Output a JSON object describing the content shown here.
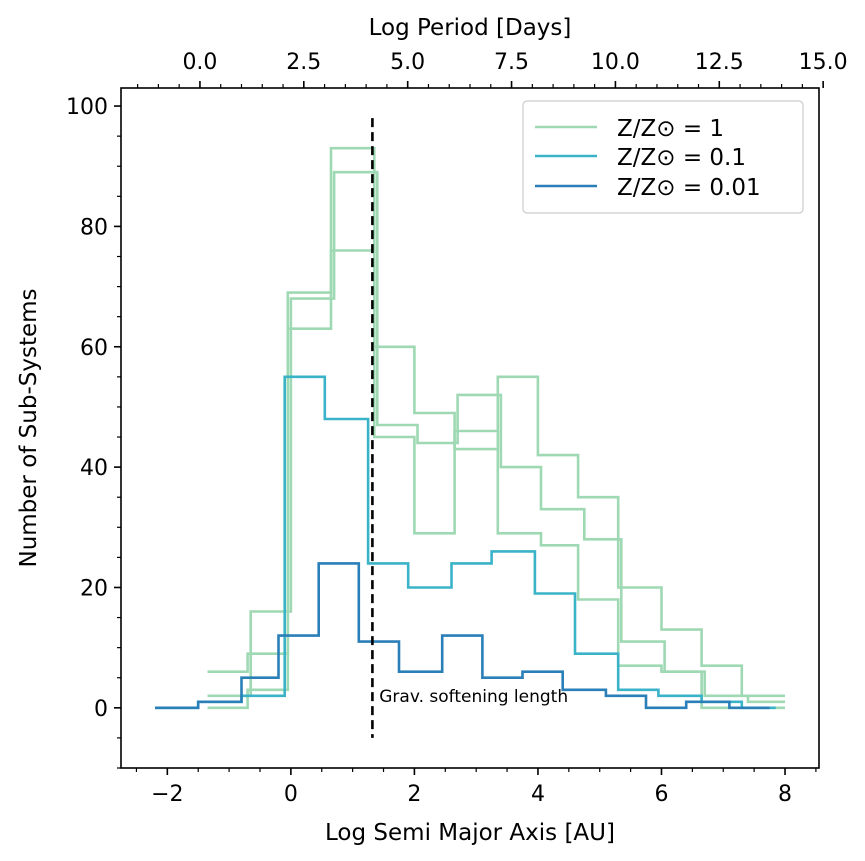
{
  "chart_data": {
    "type": "line",
    "drawstyle": "steps",
    "xlabel": "Log Semi Major Axis [AU]",
    "ylabel": "Number of Sub-Systems",
    "top_xlabel": "Log Period [Days]",
    "xlim": [
      -2.75,
      8.55
    ],
    "ylim": [
      -10,
      103
    ],
    "top_xlim": [
      -1.9,
      14.9
    ],
    "xticks": [
      -2,
      0,
      2,
      4,
      6,
      8
    ],
    "xtick_labels": [
      "−2",
      "0",
      "2",
      "4",
      "6",
      "8"
    ],
    "yticks": [
      0,
      20,
      40,
      60,
      80,
      100
    ],
    "ytick_labels": [
      "0",
      "20",
      "40",
      "60",
      "80",
      "100"
    ],
    "top_xticks": [
      0.0,
      2.5,
      5.0,
      7.5,
      10.0,
      12.5,
      15.0
    ],
    "top_xtick_labels": [
      "0.0",
      "2.5",
      "5.0",
      "7.5",
      "10.0",
      "12.5",
      "15.0"
    ],
    "legend_position": "top-right",
    "legend": [
      {
        "label": "Z/Z⊙ = 1",
        "color": "#9fd9b4"
      },
      {
        "label": "Z/Z⊙ = 0.1",
        "color": "#3ab3c8"
      },
      {
        "label": "Z/Z⊙ = 0.01",
        "color": "#2a7fb8"
      }
    ],
    "series": [
      {
        "name": "Z/Z⊙ = 1 (run a)",
        "color": "#9fd9b4",
        "edges": [
          -1.35,
          -0.7,
          -0.05,
          0.65,
          1.35,
          2.0,
          2.65,
          3.35,
          4.0,
          4.65,
          5.3,
          6.0,
          6.65,
          7.3,
          8.0
        ],
        "counts": [
          6,
          9,
          69,
          93,
          60,
          49,
          43,
          55,
          42,
          35,
          20,
          13,
          7,
          2
        ]
      },
      {
        "name": "Z/Z⊙ = 1 (run b)",
        "color": "#9fd9b4",
        "edges": [
          -1.35,
          -0.65,
          0.0,
          0.7,
          1.4,
          2.05,
          2.7,
          3.4,
          4.05,
          4.75,
          5.35,
          6.05,
          6.7,
          7.4,
          8.0
        ],
        "counts": [
          2,
          16,
          68,
          89,
          47,
          44,
          52,
          40,
          33,
          28,
          11,
          6,
          2,
          1
        ]
      },
      {
        "name": "Z/Z⊙ = 1 (run c)",
        "color": "#9fd9b4",
        "edges": [
          -1.35,
          -0.7,
          -0.05,
          0.65,
          1.35,
          2.0,
          2.65,
          3.35,
          4.05,
          4.65,
          5.3,
          6.0,
          6.65,
          7.3,
          8.0
        ],
        "counts": [
          0,
          3,
          63,
          76,
          45,
          29,
          46,
          29,
          27,
          18,
          7,
          6,
          0,
          0
        ]
      },
      {
        "name": "Z/Z⊙ = 0.1",
        "color": "#3ab3c8",
        "edges": [
          -2.2,
          -1.5,
          -0.8,
          -0.1,
          0.55,
          1.25,
          1.9,
          2.6,
          3.25,
          3.95,
          4.6,
          5.3,
          5.95,
          6.65,
          7.3,
          7.85
        ],
        "counts": [
          0,
          1,
          2,
          55,
          48,
          24,
          20,
          24,
          26,
          19,
          9,
          3,
          2,
          1,
          0
        ]
      },
      {
        "name": "Z/Z⊙ = 0.01",
        "color": "#2a7fb8",
        "edges": [
          -2.2,
          -1.5,
          -0.8,
          -0.2,
          0.45,
          1.1,
          1.75,
          2.45,
          3.1,
          3.75,
          4.4,
          5.1,
          5.75,
          6.4,
          7.1,
          7.75
        ],
        "counts": [
          0,
          1,
          5,
          12,
          24,
          11,
          6,
          12,
          5,
          6,
          3,
          2,
          0,
          1,
          0
        ]
      }
    ],
    "vline": {
      "x": 1.32,
      "y_range": [
        -5,
        98
      ],
      "style": "dashed",
      "color": "#000000",
      "annotation": "Grav. softening length",
      "annotation_at": {
        "x": 1.35,
        "y": 1
      }
    }
  }
}
